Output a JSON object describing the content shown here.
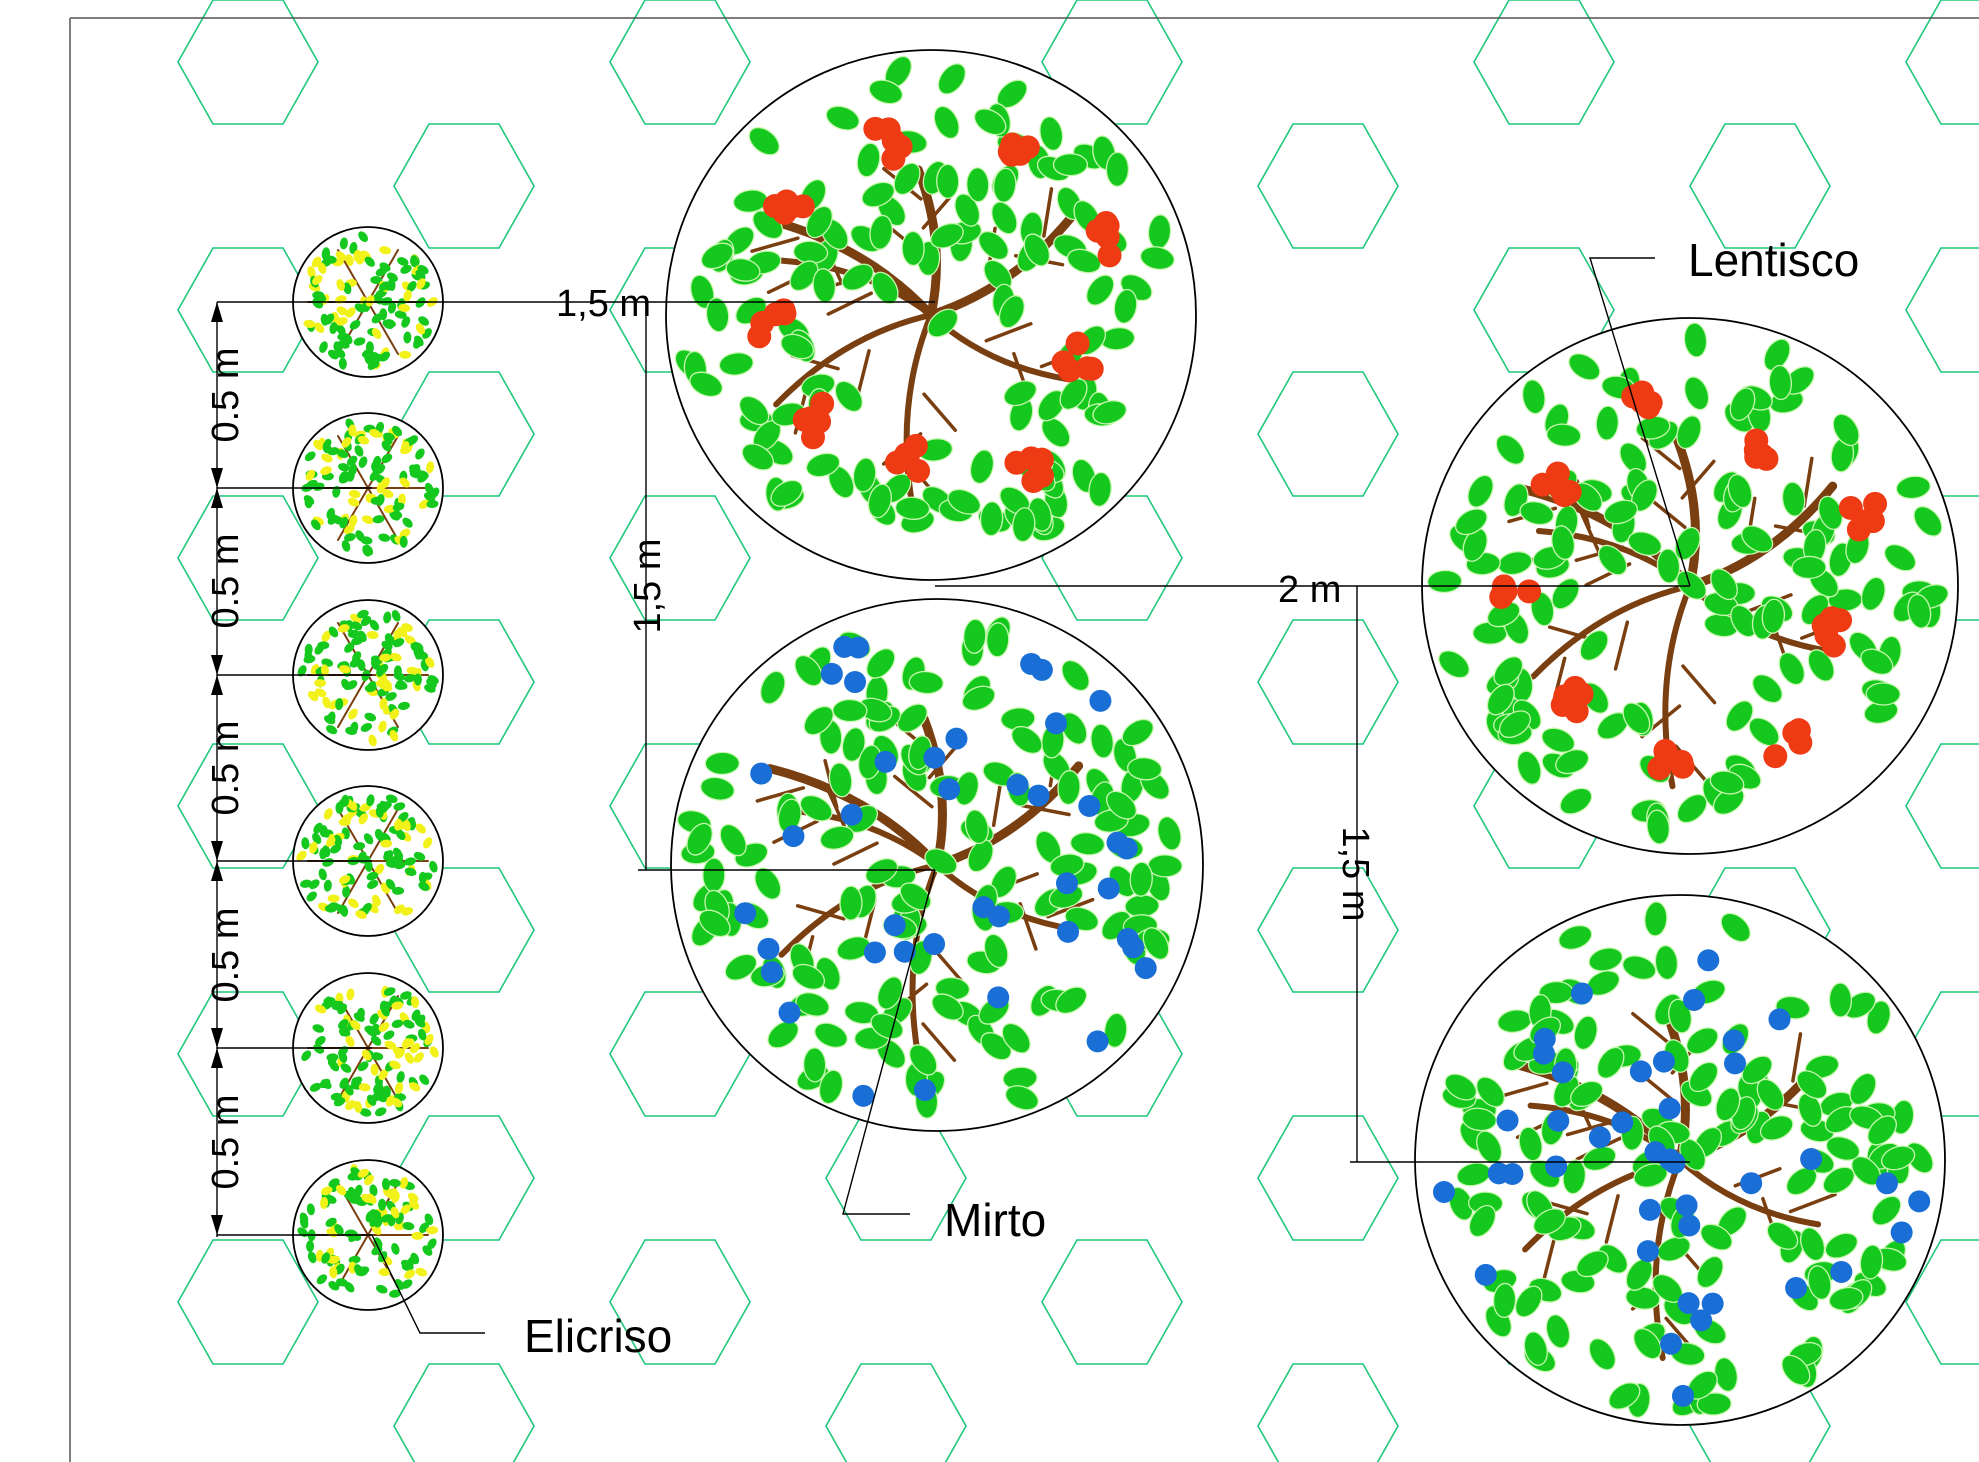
{
  "labels": {
    "lentisco": "Lentisco",
    "mirto": "Mirto",
    "elicriso": "Elicriso"
  },
  "dimensions": {
    "elicriso_spacing": [
      "0.5 m",
      "0.5 m",
      "0.5 m",
      "0.5 m",
      "0.5 m"
    ],
    "to_first_tree": "1,5 m",
    "tree_vertical_left": "1,5 m",
    "between_columns": "2 m",
    "tree_vertical_right": "1,5 m"
  },
  "colors": {
    "background": "#ffffff",
    "hex_grid": "#1ec77a",
    "leaf": "#14c81e",
    "branch": "#7a3f10",
    "lentisco_berry": "#ef3b14",
    "mirto_berry": "#1a6fd6",
    "elicriso_flower": "#f2f21a",
    "outline": "#000000"
  }
}
